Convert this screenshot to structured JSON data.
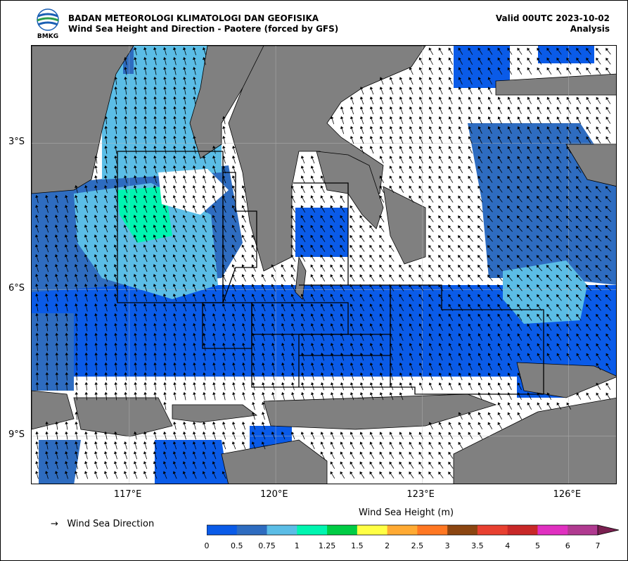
{
  "header": {
    "agency": "BADAN METEOROLOGI KLIMATOLOGI DAN GEOFISIKA",
    "product": "Wind Sea Height and Direction - Paotere (forced by GFS)",
    "valid": "Valid 00UTC 2023-10-02",
    "run_type": "Analysis",
    "logo_text": "BMKG"
  },
  "map": {
    "lon_range": [
      115.0,
      127.0
    ],
    "lat_range": [
      -10.0,
      -1.0
    ],
    "grid": true,
    "y_ticks": [
      {
        "lat": -3,
        "label": "3°S"
      },
      {
        "lat": -6,
        "label": "6°S"
      },
      {
        "lat": -9,
        "label": "9°S"
      }
    ],
    "x_ticks": [
      {
        "lon": 117,
        "label": "117°E"
      },
      {
        "lon": 120,
        "label": "120°E"
      },
      {
        "lon": 123,
        "label": "123°E"
      },
      {
        "lon": 126,
        "label": "126°E"
      }
    ],
    "wind_direction_note": "predominantly toward north-northwest (southeasterly wind)",
    "colors": {
      "land": "#808080",
      "coast": "#000000",
      "no_data": "#ffffff"
    }
  },
  "legend": {
    "arrow_symbol": "→",
    "direction_label": "Wind Sea Direction",
    "colorbar_title": "Wind Sea Height (m)",
    "bins": [
      {
        "from": 0,
        "color": "#0a5be8"
      },
      {
        "from": 0.5,
        "color": "#2e6cc0"
      },
      {
        "from": 0.75,
        "color": "#5bbde6"
      },
      {
        "from": 1,
        "color": "#00f5b0"
      },
      {
        "from": 1.25,
        "color": "#00cc44"
      },
      {
        "from": 1.5,
        "color": "#ffff44"
      },
      {
        "from": 2,
        "color": "#ffaa33"
      },
      {
        "from": 2.5,
        "color": "#ff7722"
      },
      {
        "from": 3,
        "color": "#8b4511"
      },
      {
        "from": 3.5,
        "color": "#e84030"
      },
      {
        "from": 4,
        "color": "#c82828"
      },
      {
        "from": 5,
        "color": "#e030c0"
      },
      {
        "from": 6,
        "color": "#b03a90"
      },
      {
        "from": 7,
        "color": "#7a2050"
      }
    ],
    "tick_labels": [
      "0",
      "0.5",
      "0.75",
      "1",
      "1.25",
      "1.5",
      "2",
      "2.5",
      "3",
      "3.5",
      "4",
      "5",
      "6",
      "7"
    ]
  }
}
